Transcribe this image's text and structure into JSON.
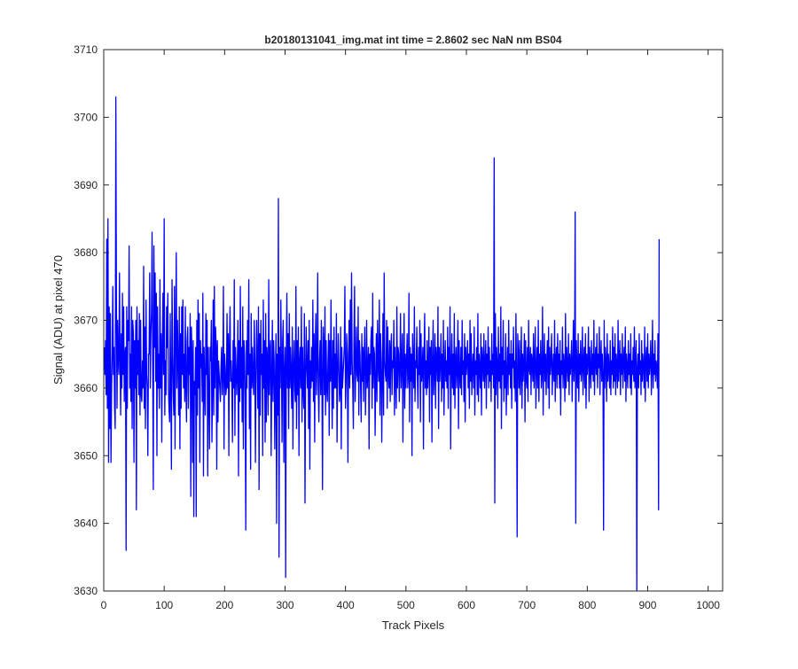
{
  "chart_data": {
    "type": "line",
    "title": "b20180131041_img.mat int time = 2.8602 sec  NaN nm BS04",
    "xlabel": "Track Pixels",
    "ylabel": "Signal (ADU) at pixel 470",
    "xlim": [
      0,
      1024
    ],
    "ylim": [
      3630,
      3710
    ],
    "xticks": [
      0,
      100,
      200,
      300,
      400,
      500,
      600,
      700,
      800,
      900,
      1000
    ],
    "yticks": [
      3630,
      3640,
      3650,
      3660,
      3670,
      3680,
      3690,
      3700,
      3710
    ],
    "grid": false,
    "legend": "none",
    "series": [
      {
        "color": "#0000ff",
        "x_start": 1,
        "x_step": 1,
        "values": [
          3666,
          3662,
          3667,
          3659,
          3682,
          3657,
          3685,
          3649,
          3672,
          3654,
          3671,
          3649,
          3660,
          3665,
          3675,
          3662,
          3666,
          3657,
          3654,
          3703,
          3673,
          3657,
          3670,
          3664,
          3662,
          3677,
          3665,
          3656,
          3668,
          3660,
          3674,
          3662,
          3672,
          3658,
          3665,
          3666,
          3636,
          3672,
          3657,
          3670,
          3667,
          3681,
          3660,
          3665,
          3658,
          3672,
          3654,
          3670,
          3668,
          3649,
          3667,
          3660,
          3670,
          3642,
          3672,
          3662,
          3667,
          3659,
          3671,
          3656,
          3670,
          3659,
          3658,
          3664,
          3660,
          3678,
          3657,
          3669,
          3654,
          3673,
          3662,
          3660,
          3650,
          3665,
          3665,
          3677,
          3660,
          3668,
          3671,
          3683,
          3664,
          3645,
          3681,
          3666,
          3677,
          3661,
          3674,
          3650,
          3672,
          3660,
          3665,
          3657,
          3676,
          3660,
          3668,
          3652,
          3666,
          3674,
          3662,
          3685,
          3656,
          3664,
          3659,
          3672,
          3666,
          3674,
          3660,
          3657,
          3655,
          3671,
          3660,
          3648,
          3676,
          3665,
          3659,
          3656,
          3675,
          3651,
          3668,
          3680,
          3660,
          3670,
          3664,
          3656,
          3672,
          3651,
          3668,
          3657,
          3672,
          3662,
          3673,
          3660,
          3665,
          3658,
          3672,
          3660,
          3655,
          3667,
          3669,
          3657,
          3666,
          3662,
          3671,
          3644,
          3669,
          3665,
          3649,
          3667,
          3641,
          3661,
          3659,
          3666,
          3641,
          3670,
          3656,
          3673,
          3660,
          3671,
          3649,
          3667,
          3663,
          3665,
          3658,
          3674,
          3647,
          3666,
          3660,
          3656,
          3671,
          3662,
          3670,
          3647,
          3666,
          3659,
          3651,
          3666,
          3664,
          3670,
          3652,
          3660,
          3673,
          3656,
          3675,
          3660,
          3669,
          3666,
          3648,
          3667,
          3655,
          3664,
          3662,
          3660,
          3658,
          3663,
          3666,
          3659,
          3662,
          3675,
          3651,
          3665,
          3663,
          3659,
          3660,
          3671,
          3660,
          3668,
          3650,
          3666,
          3672,
          3661,
          3664,
          3660,
          3652,
          3667,
          3660,
          3676,
          3653,
          3666,
          3663,
          3659,
          3663,
          3670,
          3647,
          3667,
          3658,
          3675,
          3660,
          3666,
          3655,
          3672,
          3651,
          3667,
          3665,
          3659,
          3639,
          3667,
          3660,
          3670,
          3662,
          3676,
          3654,
          3665,
          3648,
          3671,
          3660,
          3666,
          3661,
          3659,
          3670,
          3664,
          3649,
          3662,
          3670,
          3664,
          3657,
          3672,
          3645,
          3668,
          3656,
          3670,
          3662,
          3665,
          3650,
          3673,
          3660,
          3667,
          3652,
          3671,
          3655,
          3666,
          3664,
          3656,
          3676,
          3659,
          3665,
          3667,
          3650,
          3662,
          3670,
          3658,
          3667,
          3664,
          3651,
          3661,
          3668,
          3640,
          3665,
          3656,
          3688,
          3635,
          3666,
          3660,
          3673,
          3664,
          3652,
          3667,
          3670,
          3649,
          3662,
          3666,
          3632,
          3664,
          3674,
          3660,
          3668,
          3654,
          3671,
          3660,
          3666,
          3662,
          3657,
          3669,
          3651,
          3663,
          3667,
          3660,
          3658,
          3675,
          3654,
          3667,
          3659,
          3669,
          3650,
          3664,
          3666,
          3660,
          3672,
          3655,
          3666,
          3660,
          3657,
          3671,
          3643,
          3662,
          3669,
          3663,
          3660,
          3667,
          3654,
          3670,
          3648,
          3664,
          3660,
          3666,
          3661,
          3673,
          3658,
          3668,
          3652,
          3666,
          3671,
          3659,
          3663,
          3677,
          3660,
          3655,
          3664,
          3667,
          3659,
          3670,
          3661,
          3645,
          3669,
          3666,
          3659,
          3672,
          3656,
          3667,
          3660,
          3658,
          3664,
          3668,
          3653,
          3667,
          3661,
          3673,
          3662,
          3654,
          3667,
          3657,
          3669,
          3660,
          3665,
          3660,
          3671,
          3652,
          3662,
          3668,
          3663,
          3658,
          3660,
          3669,
          3651,
          3666,
          3660,
          3662,
          3664,
          3666,
          3675,
          3657,
          3661,
          3668,
          3665,
          3649,
          3663,
          3670,
          3660,
          3673,
          3662,
          3677,
          3664,
          3660,
          3654,
          3667,
          3675,
          3658,
          3663,
          3669,
          3662,
          3661,
          3672,
          3656,
          3667,
          3665,
          3660,
          3655,
          3668,
          3661,
          3666,
          3658,
          3665,
          3669,
          3656,
          3661,
          3670,
          3660,
          3663,
          3666,
          3651,
          3665,
          3662,
          3667,
          3669,
          3657,
          3674,
          3660,
          3666,
          3665,
          3653,
          3661,
          3668,
          3658,
          3670,
          3663,
          3661,
          3673,
          3656,
          3668,
          3664,
          3652,
          3662,
          3671,
          3656,
          3677,
          3664,
          3662,
          3661,
          3670,
          3657,
          3669,
          3662,
          3660,
          3667,
          3658,
          3666,
          3668,
          3659,
          3664,
          3663,
          3670,
          3656,
          3666,
          3662,
          3657,
          3672,
          3660,
          3666,
          3665,
          3658,
          3663,
          3671,
          3660,
          3664,
          3668,
          3652,
          3663,
          3671,
          3657,
          3665,
          3660,
          3664,
          3668,
          3660,
          3662,
          3674,
          3655,
          3666,
          3661,
          3665,
          3650,
          3668,
          3663,
          3660,
          3672,
          3658,
          3664,
          3663,
          3669,
          3661,
          3657,
          3666,
          3662,
          3670,
          3655,
          3668,
          3661,
          3663,
          3666,
          3651,
          3665,
          3671,
          3660,
          3664,
          3659,
          3667,
          3660,
          3663,
          3669,
          3655,
          3666,
          3662,
          3667,
          3652,
          3664,
          3670,
          3659,
          3662,
          3668,
          3657,
          3666,
          3664,
          3661,
          3672,
          3654,
          3666,
          3661,
          3664,
          3668,
          3658,
          3665,
          3660,
          3670,
          3656,
          3663,
          3667,
          3661,
          3664,
          3660,
          3669,
          3657,
          3666,
          3662,
          3672,
          3651,
          3663,
          3668,
          3660,
          3665,
          3659,
          3671,
          3657,
          3664,
          3666,
          3660,
          3663,
          3670,
          3654,
          3667,
          3662,
          3660,
          3666,
          3659,
          3670,
          3662,
          3664,
          3658,
          3668,
          3655,
          3666,
          3662,
          3664,
          3667,
          3660,
          3665,
          3657,
          3670,
          3661,
          3668,
          3659,
          3663,
          3665,
          3660,
          3669,
          3656,
          3664,
          3662,
          3666,
          3659,
          3671,
          3658,
          3665,
          3663,
          3660,
          3668,
          3656,
          3666,
          3664,
          3661,
          3668,
          3660,
          3663,
          3667,
          3657,
          3665,
          3662,
          3669,
          3660,
          3666,
          3661,
          3664,
          3658,
          3668,
          3662,
          3665,
          3660,
          3694,
          3643,
          3671,
          3659,
          3666,
          3663,
          3657,
          3669,
          3661,
          3665,
          3660,
          3672,
          3654,
          3666,
          3662,
          3670,
          3658,
          3664,
          3660,
          3668,
          3656,
          3662,
          3666,
          3659,
          3670,
          3662,
          3665,
          3660,
          3667,
          3657,
          3665,
          3663,
          3669,
          3660,
          3664,
          3658,
          3671,
          3662,
          3638,
          3668,
          3665,
          3660,
          3667,
          3659,
          3662,
          3669,
          3657,
          3665,
          3661,
          3664,
          3668,
          3655,
          3667,
          3662,
          3660,
          3666,
          3658,
          3670,
          3663,
          3662,
          3666,
          3659,
          3665,
          3664,
          3661,
          3668,
          3660,
          3664,
          3669,
          3657,
          3663,
          3666,
          3660,
          3670,
          3658,
          3665,
          3662,
          3667,
          3660,
          3662,
          3672,
          3656,
          3663,
          3668,
          3661,
          3665,
          3659,
          3664,
          3667,
          3660,
          3669,
          3657,
          3666,
          3662,
          3664,
          3668,
          3659,
          3663,
          3665,
          3661,
          3670,
          3658,
          3664,
          3666,
          3660,
          3668,
          3662,
          3665,
          3660,
          3667,
          3656,
          3664,
          3662,
          3669,
          3660,
          3665,
          3663,
          3658,
          3671,
          3660,
          3666,
          3663,
          3661,
          3668,
          3659,
          3665,
          3662,
          3664,
          3667,
          3658,
          3663,
          3670,
          3661,
          3664,
          3686,
          3640,
          3667,
          3663,
          3660,
          3668,
          3658,
          3665,
          3662,
          3667,
          3661,
          3663,
          3669,
          3659,
          3664,
          3666,
          3660,
          3668,
          3657,
          3665,
          3662,
          3664,
          3669,
          3658,
          3666,
          3663,
          3660,
          3667,
          3662,
          3665,
          3661,
          3670,
          3659,
          3664,
          3666,
          3662,
          3668,
          3660,
          3665,
          3663,
          3669,
          3659,
          3664,
          3667,
          3661,
          3665,
          3662,
          3639,
          3670,
          3660,
          3666,
          3664,
          3658,
          3668,
          3661,
          3665,
          3663,
          3660,
          3667,
          3659,
          3664,
          3662,
          3669,
          3660,
          3666,
          3661,
          3668,
          3659,
          3665,
          3663,
          3660,
          3670,
          3661,
          3664,
          3667,
          3659,
          3665,
          3662,
          3668,
          3660,
          3664,
          3666,
          3661,
          3669,
          3658,
          3665,
          3663,
          3660,
          3667,
          3662,
          3665,
          3660,
          3668,
          3659,
          3664,
          3662,
          3666,
          3661,
          3669,
          3660,
          3664,
          3667,
          3630,
          3663,
          3665,
          3660,
          3668,
          3662,
          3664,
          3659,
          3667,
          3661,
          3665,
          3663,
          3660,
          3669,
          3658,
          3664,
          3666,
          3661,
          3668,
          3660,
          3665,
          3662,
          3664,
          3667,
          3659,
          3663,
          3670,
          3660,
          3665,
          3662,
          3667,
          3661,
          3664,
          3663,
          3660,
          3668,
          3642,
          3682
        ]
      }
    ]
  }
}
